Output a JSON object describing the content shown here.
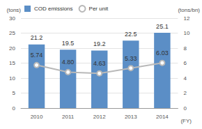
{
  "chart_data": {
    "type": "bar",
    "categories": [
      "2010",
      "2011",
      "2012",
      "2013",
      "2014"
    ],
    "xlabel": "(FY)",
    "ylabel": "(tons)",
    "y2label": "(tons/bn)",
    "series": [
      {
        "name": "COD emissions",
        "type": "bar",
        "color": "#5b8ec6",
        "values": [
          21.2,
          19.5,
          19.2,
          22.5,
          25.1
        ]
      },
      {
        "name": "Per unit",
        "type": "line",
        "axis": "y2",
        "color": "#b9b9b9",
        "marker": "circle",
        "values": [
          5.74,
          4.8,
          4.63,
          5.33,
          6.03
        ],
        "value_labels": [
          "5.74",
          "4.80",
          "4.63",
          "5.33",
          "6.03"
        ]
      }
    ],
    "ylim": [
      0,
      30
    ],
    "yticks": [
      0,
      5,
      10,
      15,
      20,
      25,
      30
    ],
    "y2lim": [
      0,
      12
    ],
    "y2ticks": [
      0,
      2,
      4,
      6,
      8,
      10,
      12
    ],
    "grid": true,
    "legend": "top",
    "data_labels": true
  }
}
